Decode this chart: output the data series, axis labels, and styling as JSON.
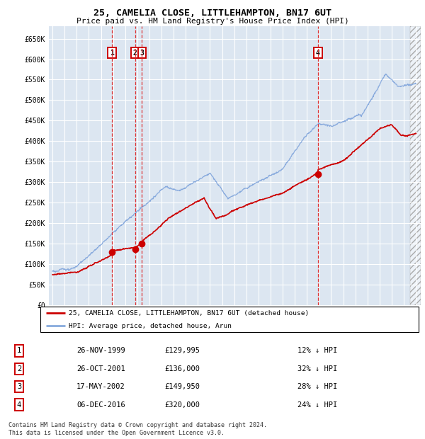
{
  "title": "25, CAMELIA CLOSE, LITTLEHAMPTON, BN17 6UT",
  "subtitle": "Price paid vs. HM Land Registry's House Price Index (HPI)",
  "ylabel_ticks": [
    "£0",
    "£50K",
    "£100K",
    "£150K",
    "£200K",
    "£250K",
    "£300K",
    "£350K",
    "£400K",
    "£450K",
    "£500K",
    "£550K",
    "£600K",
    "£650K"
  ],
  "ytick_vals": [
    0,
    50000,
    100000,
    150000,
    200000,
    250000,
    300000,
    350000,
    400000,
    450000,
    500000,
    550000,
    600000,
    650000
  ],
  "ylim": [
    0,
    680000
  ],
  "xlim_start": 1994.7,
  "xlim_end": 2025.4,
  "background_color": "#dce6f1",
  "grid_color": "#ffffff",
  "red_line_color": "#cc0000",
  "blue_line_color": "#88aadd",
  "hatch_start": 2024.5,
  "sale_points": [
    {
      "date_num": 1999.9,
      "price": 129995,
      "label": "1"
    },
    {
      "date_num": 2001.82,
      "price": 136000,
      "label": "2"
    },
    {
      "date_num": 2002.38,
      "price": 149950,
      "label": "3"
    },
    {
      "date_num": 2016.92,
      "price": 320000,
      "label": "4"
    }
  ],
  "legend_entries": [
    {
      "color": "#cc0000",
      "label": "25, CAMELIA CLOSE, LITTLEHAMPTON, BN17 6UT (detached house)"
    },
    {
      "color": "#88aadd",
      "label": "HPI: Average price, detached house, Arun"
    }
  ],
  "table_rows": [
    {
      "num": "1",
      "date": "26-NOV-1999",
      "price": "£129,995",
      "pct": "12% ↓ HPI"
    },
    {
      "num": "2",
      "date": "26-OCT-2001",
      "price": "£136,000",
      "pct": "32% ↓ HPI"
    },
    {
      "num": "3",
      "date": "17-MAY-2002",
      "price": "£149,950",
      "pct": "28% ↓ HPI"
    },
    {
      "num": "4",
      "date": "06-DEC-2016",
      "price": "£320,000",
      "pct": "24% ↓ HPI"
    }
  ],
  "footnote": "Contains HM Land Registry data © Crown copyright and database right 2024.\nThis data is licensed under the Open Government Licence v3.0.",
  "vline_color": "#dd3333",
  "marker_box_color": "#cc0000",
  "marker_dot_color": "#cc0000"
}
